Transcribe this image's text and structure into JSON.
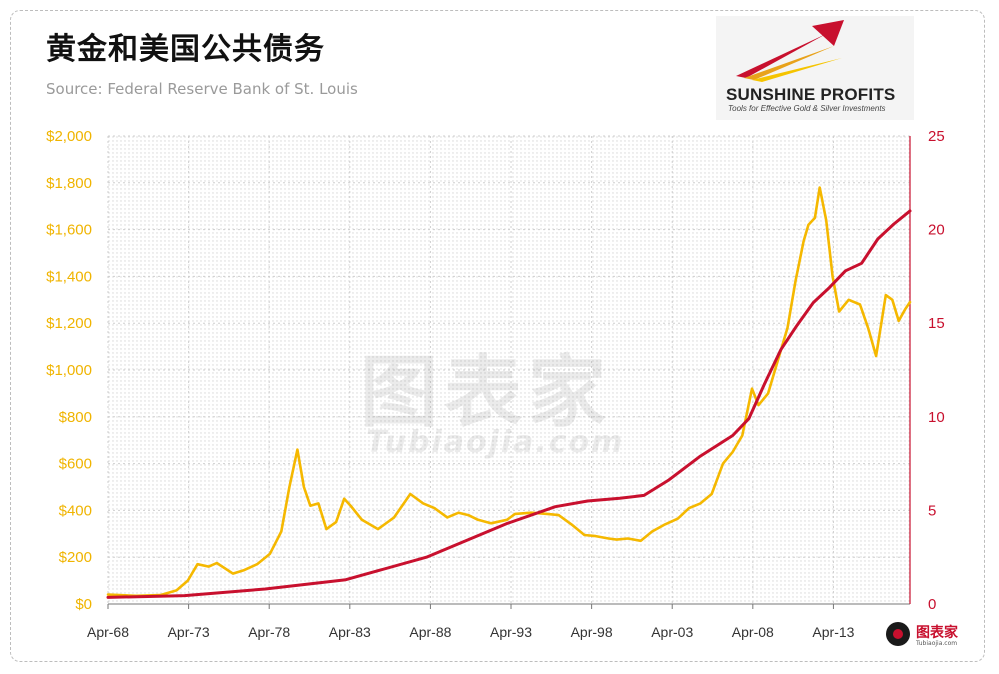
{
  "header": {
    "title": "黄金和美国公共债务",
    "source": "Source: Federal Reserve Bank of St. Louis"
  },
  "logo": {
    "name": "SUNSHINE PROFITS",
    "tagline": "Tools for Effective Gold & Silver Investments"
  },
  "watermark": {
    "main": "图表家",
    "sub": "Tubiaojia.com"
  },
  "brand": {
    "text": "图表家",
    "url": "Tubiaojia.com"
  },
  "colors": {
    "gold": "#f5b800",
    "debt": "#c8102e",
    "left_axis": "#f0b400",
    "right_axis": "#c8102e"
  },
  "chart_data": {
    "type": "line",
    "title": "黄金和美国公共债务",
    "x_ticks": [
      "Apr-68",
      "Apr-73",
      "Apr-78",
      "Apr-83",
      "Apr-88",
      "Apr-93",
      "Apr-98",
      "Apr-03",
      "Apr-08",
      "Apr-13"
    ],
    "x_range": [
      1968.25,
      2018.0
    ],
    "y_left": {
      "ticks": [
        "$0",
        "$200",
        "$400",
        "$600",
        "$800",
        "$1,000",
        "$1,200",
        "$1,400",
        "$1,600",
        "$1,800",
        "$2,000"
      ],
      "range": [
        0,
        2000
      ]
    },
    "y_right": {
      "ticks": [
        "0",
        "5",
        "10",
        "15",
        "20",
        "25"
      ],
      "range": [
        0,
        25
      ]
    },
    "grid": true,
    "series": [
      {
        "axis": "left",
        "color": "#f5b800",
        "x": [
          1968.25,
          1970,
          1971.5,
          1972.5,
          1973.2,
          1973.8,
          1974.5,
          1975,
          1976,
          1976.7,
          1977.5,
          1978.3,
          1979,
          1979.5,
          1980.0,
          1980.4,
          1980.8,
          1981.3,
          1981.8,
          1982.4,
          1982.9,
          1983.3,
          1984,
          1985,
          1986,
          1987,
          1987.8,
          1988.5,
          1989.3,
          1990,
          1990.6,
          1991.2,
          1992,
          1993,
          1993.5,
          1994.5,
          1995.5,
          1996.2,
          1997,
          1997.8,
          1998.5,
          1999.3,
          1999.8,
          2000.5,
          2001.3,
          2002,
          2002.8,
          2003.6,
          2004.3,
          2005,
          2005.7,
          2006.4,
          2007,
          2007.6,
          2008.2,
          2008.6,
          2009.2,
          2009.8,
          2010.4,
          2010.9,
          2011.4,
          2011.7,
          2012.1,
          2012.4,
          2012.8,
          2013.2,
          2013.6,
          2014.2,
          2014.9,
          2015.4,
          2015.9,
          2016.5,
          2016.9,
          2017.3,
          2017.7,
          2018.0
        ],
        "values": [
          40,
          35,
          38,
          58,
          100,
          170,
          160,
          175,
          130,
          145,
          170,
          215,
          310,
          500,
          660,
          500,
          420,
          430,
          320,
          350,
          450,
          420,
          360,
          320,
          370,
          470,
          430,
          410,
          370,
          390,
          380,
          360,
          345,
          360,
          385,
          390,
          385,
          380,
          340,
          295,
          290,
          280,
          275,
          280,
          270,
          310,
          340,
          365,
          410,
          430,
          470,
          600,
          650,
          720,
          920,
          850,
          900,
          1040,
          1180,
          1380,
          1550,
          1620,
          1650,
          1780,
          1640,
          1400,
          1250,
          1300,
          1280,
          1180,
          1060,
          1320,
          1300,
          1210,
          1260,
          1290
        ]
      },
      {
        "axis": "right",
        "color": "#c8102e",
        "x": [
          1968.25,
          1973,
          1978,
          1983,
          1988,
          1993,
          1996,
          1998,
          2000,
          2001.5,
          2003,
          2005,
          2007,
          2008,
          2009,
          2010,
          2011,
          2012,
          2013,
          2014,
          2015,
          2016,
          2017,
          2018.0
        ],
        "values": [
          0.35,
          0.45,
          0.8,
          1.3,
          2.5,
          4.3,
          5.2,
          5.5,
          5.65,
          5.8,
          6.6,
          7.9,
          9.0,
          9.9,
          11.8,
          13.6,
          14.9,
          16.1,
          16.9,
          17.8,
          18.2,
          19.5,
          20.3,
          21.0
        ]
      }
    ]
  }
}
